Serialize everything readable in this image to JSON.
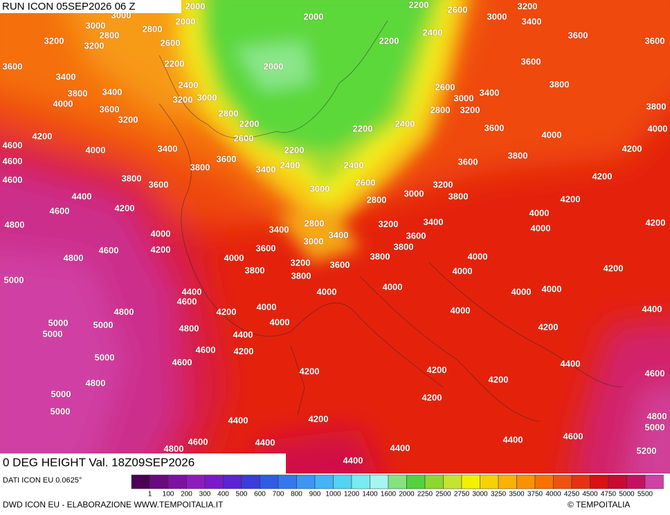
{
  "header": {
    "run": "RUN ICON 05SEP2026 06 Z"
  },
  "caption": "0 DEG HEIGHT Val. 18Z09SEP2026",
  "source": "DATI ICON EU 0.0625°",
  "legend_labels": [
    "1",
    "100",
    "200",
    "300",
    "400",
    "500",
    "600",
    "700",
    "800",
    "900",
    "1000",
    "1200",
    "1400",
    "1600",
    "2000",
    "2250",
    "2500",
    "2750",
    "3000",
    "3250",
    "3500",
    "3750",
    "4000",
    "4250",
    "4500",
    "4750",
    "5000",
    "5500"
  ],
  "footer": {
    "credit": "DWD ICON EU - ELABORAZIONE WWW.TEMPOITALIA.IT",
    "copyright": "© TEMPOITALIA"
  },
  "contour_labels": [
    "2000",
    "2000",
    "2000",
    "2000",
    "2200",
    "2200",
    "2200",
    "2200",
    "2200",
    "2200",
    "2400",
    "2400",
    "2400",
    "2400",
    "2400",
    "2600",
    "2600",
    "2600",
    "2600",
    "2600",
    "2800",
    "2800",
    "2800",
    "2800",
    "2800",
    "2800",
    "3000",
    "3000",
    "3000",
    "3000",
    "3000",
    "3000",
    "3000",
    "3000",
    "3200",
    "3200",
    "3200",
    "3200",
    "3200",
    "3200",
    "3200",
    "3200",
    "3200",
    "3400",
    "3400",
    "3400",
    "3400",
    "3400",
    "3400",
    "3400",
    "3400",
    "3400",
    "3600",
    "3600",
    "3600",
    "3600",
    "3600",
    "3600",
    "3600",
    "3600",
    "3600",
    "3600",
    "3600",
    "3600",
    "3800",
    "3800",
    "3800",
    "3800",
    "3800",
    "3800",
    "3800",
    "3800",
    "3800",
    "3800",
    "3800",
    "4000",
    "4000",
    "4000",
    "4000",
    "4000",
    "4000",
    "4000",
    "4000",
    "4000",
    "4000",
    "4000",
    "4000",
    "4000",
    "4000",
    "4000",
    "4000",
    "4000",
    "4200",
    "4200",
    "4200",
    "4200",
    "4200",
    "4200",
    "4200",
    "4200",
    "4200",
    "4200",
    "4200",
    "4200",
    "4200",
    "4200",
    "4200",
    "4200",
    "4400",
    "4400",
    "4400",
    "4400",
    "4400",
    "4400",
    "4400",
    "4400",
    "4400",
    "4400",
    "4600",
    "4600",
    "4600",
    "4600",
    "4600",
    "4600",
    "4600",
    "4600",
    "4600",
    "4600",
    "4600",
    "4800",
    "4800",
    "4800",
    "4800",
    "4800",
    "4800",
    "4800",
    "5000",
    "5000",
    "5000",
    "5000",
    "5000",
    "5000",
    "5000",
    "5000",
    "5200"
  ]
}
